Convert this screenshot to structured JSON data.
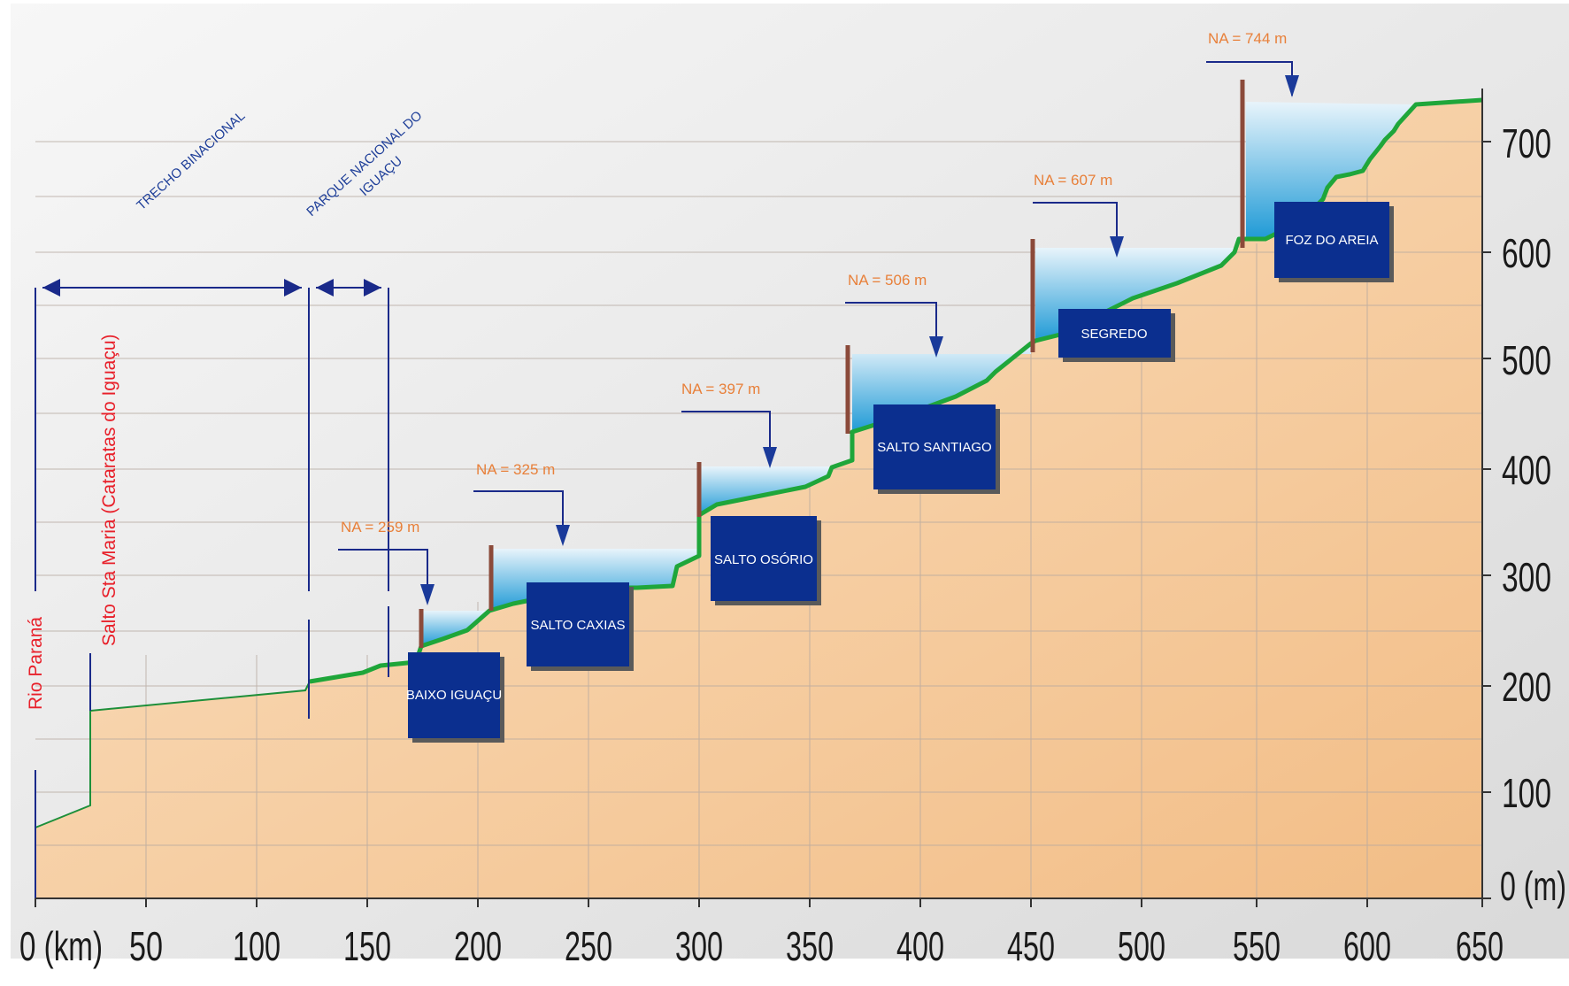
{
  "axes": {
    "x_unit_label": "0 (km)",
    "x_ticks": [
      "50",
      "100",
      "150",
      "200",
      "250",
      "300",
      "350",
      "400",
      "450",
      "500",
      "550",
      "600",
      "650"
    ],
    "y_unit_label": "0 (m)",
    "y_ticks": [
      "100",
      "200",
      "300",
      "400",
      "500",
      "600",
      "700"
    ]
  },
  "zones": {
    "trecho": "TRECHO BINACIONAL",
    "parque_line1": "PARQUE NACIONAL DO",
    "parque_line2": "IGUAÇU"
  },
  "landmarks": {
    "rio_parana": "Rio Paraná",
    "salto_sta_maria": "Salto Sta Maria (Cataratas do Iguaçu)"
  },
  "plants": [
    {
      "name": "BAIXO IGUAÇU",
      "na": "NA = 259 m"
    },
    {
      "name": "SALTO CAXIAS",
      "na": "NA = 325 m"
    },
    {
      "name": "SALTO OSÓRIO",
      "na": "NA = 397 m"
    },
    {
      "name": "SALTO SANTIAGO",
      "na": "NA = 506 m"
    },
    {
      "name": "SEGREDO",
      "na": "NA = 607 m"
    },
    {
      "name": "FOZ DO AREIA",
      "na": "NA = 744 m"
    }
  ],
  "colors": {
    "terrain": "#f3c694",
    "river_line": "#1fa63a",
    "reservoir": "#2aa5dc",
    "plant_box": "#0b2f8f",
    "dam": "#8b4a3a",
    "na_text": "#e8803a",
    "zone_text": "#1f3f99",
    "landmark_text": "#e8202a"
  }
}
